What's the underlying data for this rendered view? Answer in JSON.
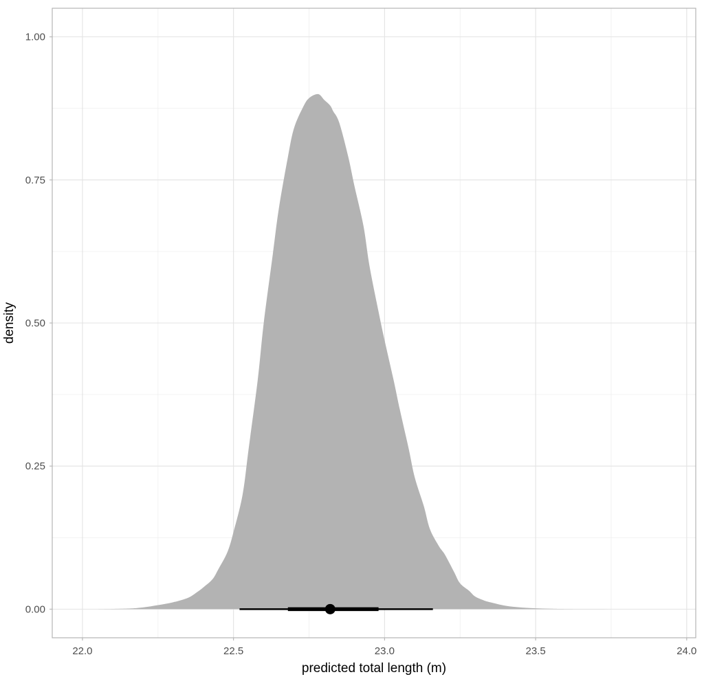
{
  "chart_data": {
    "type": "area",
    "title": "",
    "xlabel": "predicted total length (m)",
    "ylabel": "density",
    "xlim": [
      21.9,
      24.03
    ],
    "ylim": [
      -0.05,
      1.05
    ],
    "x_ticks": [
      22.0,
      22.5,
      23.0,
      23.5,
      24.0
    ],
    "x_tick_labels": [
      "22.0",
      "22.5",
      "23.0",
      "23.5",
      "24.0"
    ],
    "y_ticks": [
      0.0,
      0.25,
      0.5,
      0.75,
      1.0
    ],
    "y_tick_labels": [
      "0.00",
      "0.25",
      "0.50",
      "0.75",
      "1.00"
    ],
    "grid": true,
    "fill_color": "#b3b3b3",
    "series": [
      {
        "x": [
          22.05,
          22.15,
          22.2,
          22.25,
          22.3,
          22.35,
          22.38,
          22.4,
          22.43,
          22.45,
          22.48,
          22.5,
          22.53,
          22.55,
          22.58,
          22.6,
          22.63,
          22.65,
          22.68,
          22.7,
          22.73,
          22.75,
          22.78,
          22.8,
          22.82,
          22.83,
          22.85,
          22.88,
          22.9,
          22.93,
          22.95,
          22.98,
          23.0,
          23.03,
          23.05,
          23.08,
          23.1,
          23.13,
          23.15,
          23.18,
          23.2,
          23.23,
          23.25,
          23.28,
          23.3,
          23.33,
          23.35,
          23.4,
          23.45,
          23.5,
          23.55,
          23.6,
          23.7,
          23.8,
          23.9
        ],
        "y": [
          0.0,
          0.001,
          0.003,
          0.007,
          0.012,
          0.02,
          0.03,
          0.038,
          0.052,
          0.07,
          0.1,
          0.135,
          0.2,
          0.28,
          0.4,
          0.5,
          0.62,
          0.7,
          0.79,
          0.84,
          0.877,
          0.893,
          0.9,
          0.89,
          0.88,
          0.87,
          0.85,
          0.79,
          0.74,
          0.67,
          0.6,
          0.52,
          0.47,
          0.4,
          0.35,
          0.28,
          0.23,
          0.18,
          0.14,
          0.11,
          0.095,
          0.065,
          0.045,
          0.032,
          0.022,
          0.015,
          0.012,
          0.006,
          0.003,
          0.0015,
          0.0007,
          0.0003,
          0.0001,
          0.0,
          0.0
        ]
      }
    ],
    "point_interval": {
      "point": 22.82,
      "inner": [
        22.68,
        22.98
      ],
      "outer": [
        22.52,
        23.16
      ],
      "y": 0.0
    }
  }
}
